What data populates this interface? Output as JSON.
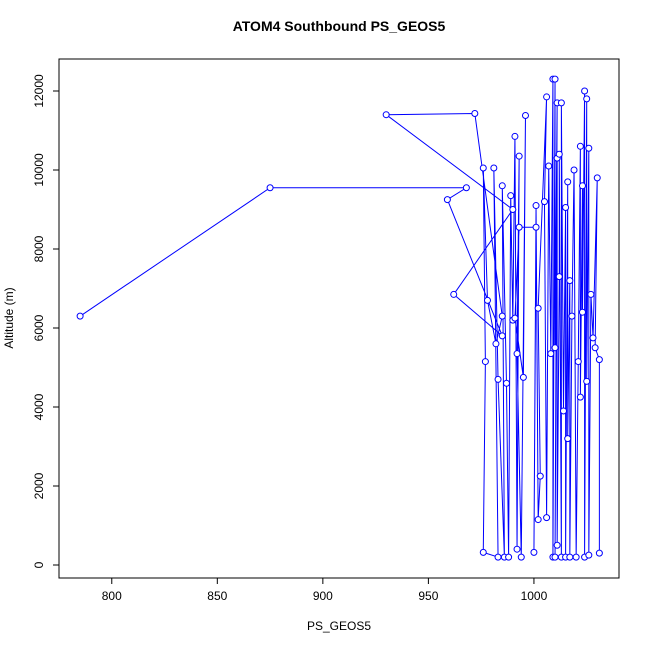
{
  "chart_data": {
    "type": "line",
    "title": "ATOM4 Southbound PS_GEOS5",
    "x_label": "PS_GEOS5",
    "y_label": "Altitude (m)",
    "color": "#0000ff",
    "x": [
      785,
      875,
      968,
      959,
      985,
      962,
      990,
      930,
      972,
      985,
      982,
      978,
      976,
      977,
      976,
      983,
      981,
      983,
      986,
      985,
      987,
      988,
      989,
      990,
      991,
      992,
      993,
      992,
      994,
      996,
      995,
      991,
      993,
      1001,
      1000,
      1001,
      1002,
      1003,
      1002,
      1006,
      1005,
      1006,
      1007,
      1008,
      1009,
      1009,
      1010,
      1010,
      1011,
      1010,
      1011,
      1011,
      1012,
      1012,
      1013,
      1013,
      1014,
      1015,
      1015,
      1016,
      1016,
      1017,
      1017,
      1018,
      1019,
      1020,
      1021,
      1022,
      1022,
      1023,
      1023,
      1024,
      1024,
      1025,
      1025,
      1026,
      1026,
      1027,
      1028,
      1030,
      1029,
      1031,
      1031
    ],
    "values": [
      6300,
      9550,
      9550,
      9250,
      5800,
      6850,
      9000,
      11400,
      11430,
      6300,
      5600,
      6700,
      10050,
      5150,
      320,
      200,
      10050,
      4700,
      200,
      9600,
      4600,
      200,
      9350,
      6200,
      10850,
      400,
      10350,
      5350,
      200,
      11380,
      4750,
      6250,
      8550,
      8550,
      320,
      9100,
      1150,
      2250,
      6500,
      11850,
      9200,
      1200,
      10100,
      5350,
      12300,
      200,
      12300,
      5500,
      11700,
      200,
      10300,
      500,
      7300,
      10400,
      200,
      11700,
      3900,
      9050,
      200,
      9700,
      3200,
      7200,
      200,
      6300,
      10000,
      200,
      5150,
      10600,
      4250,
      9600,
      6400,
      12000,
      200,
      11800,
      4650,
      10550,
      250,
      6850,
      5750,
      9800,
      5500,
      5200,
      300
    ],
    "xlim": [
      775,
      1040.3
    ],
    "ylim": [
      -329,
      12810
    ],
    "xticks": [
      800,
      850,
      900,
      950,
      1000
    ],
    "yticks": [
      0,
      2000,
      4000,
      6000,
      8000,
      10000,
      12000
    ]
  }
}
